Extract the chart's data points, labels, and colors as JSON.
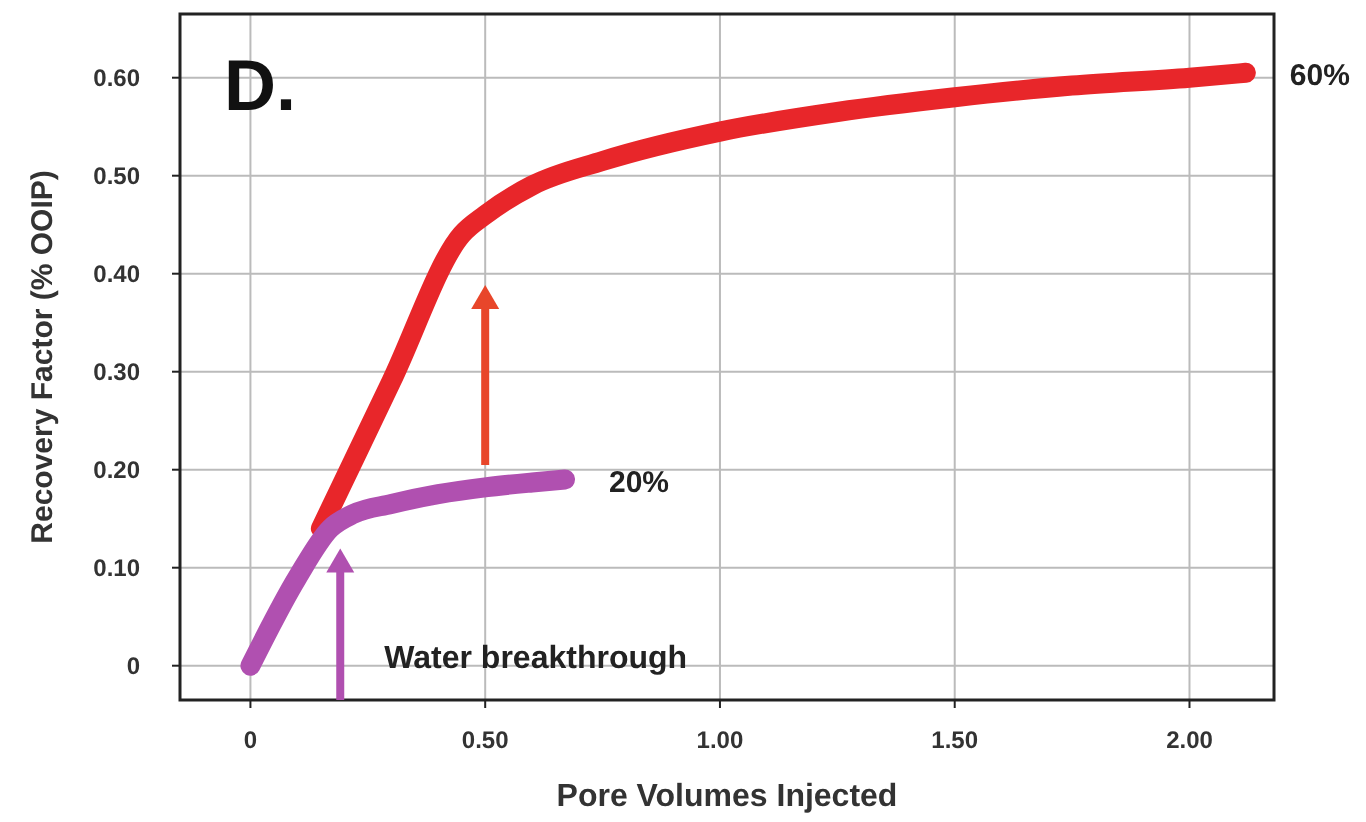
{
  "chart_data": {
    "type": "line",
    "xlabel": "Pore Volumes Injected",
    "ylabel": "Recovery Factor (% OOIP)",
    "xlim": [
      -0.15,
      2.18
    ],
    "ylim": [
      -0.035,
      0.665
    ],
    "xticks": [
      0,
      {
        "value": 0.5,
        "label": "0.50"
      },
      {
        "value": 1,
        "label": "1.00"
      },
      {
        "value": 1.5,
        "label": "1.50"
      },
      {
        "value": 2,
        "label": "2.00"
      }
    ],
    "yticks": [
      0,
      {
        "value": 0.1,
        "label": "0.10"
      },
      {
        "value": 0.2,
        "label": "0.20"
      },
      {
        "value": 0.3,
        "label": "0.30"
      },
      {
        "value": 0.4,
        "label": "0.40"
      },
      {
        "value": 0.5,
        "label": "0.50"
      },
      {
        "value": 0.6,
        "label": "0.60"
      }
    ],
    "grid": true,
    "marker": "none",
    "line_style": "solid",
    "series": [
      {
        "color": "#e8262a",
        "x": [
          0.15,
          0.3,
          0.45,
          0.5,
          0.6,
          0.75,
          1.0,
          1.25,
          1.5,
          1.75,
          2.0,
          2.12
        ],
        "values": [
          0.14,
          0.29,
          0.44,
          0.46,
          0.49,
          0.515,
          0.545,
          0.565,
          0.58,
          0.592,
          0.6,
          0.605
        ]
      },
      {
        "color": "#b050b0",
        "x": [
          0,
          0.1,
          0.17,
          0.22,
          0.3,
          0.4,
          0.5,
          0.6,
          0.67
        ],
        "values": [
          0,
          0.09,
          0.14,
          0.155,
          0.165,
          0.175,
          0.182,
          0.187,
          0.19
        ]
      }
    ],
    "annotations": [
      "D.",
      {
        "text": "20%",
        "x": 0.67,
        "y": 0.19
      },
      {
        "text": "60%",
        "x": 2.12,
        "y": 0.605
      },
      "Water breakthrough"
    ]
  }
}
